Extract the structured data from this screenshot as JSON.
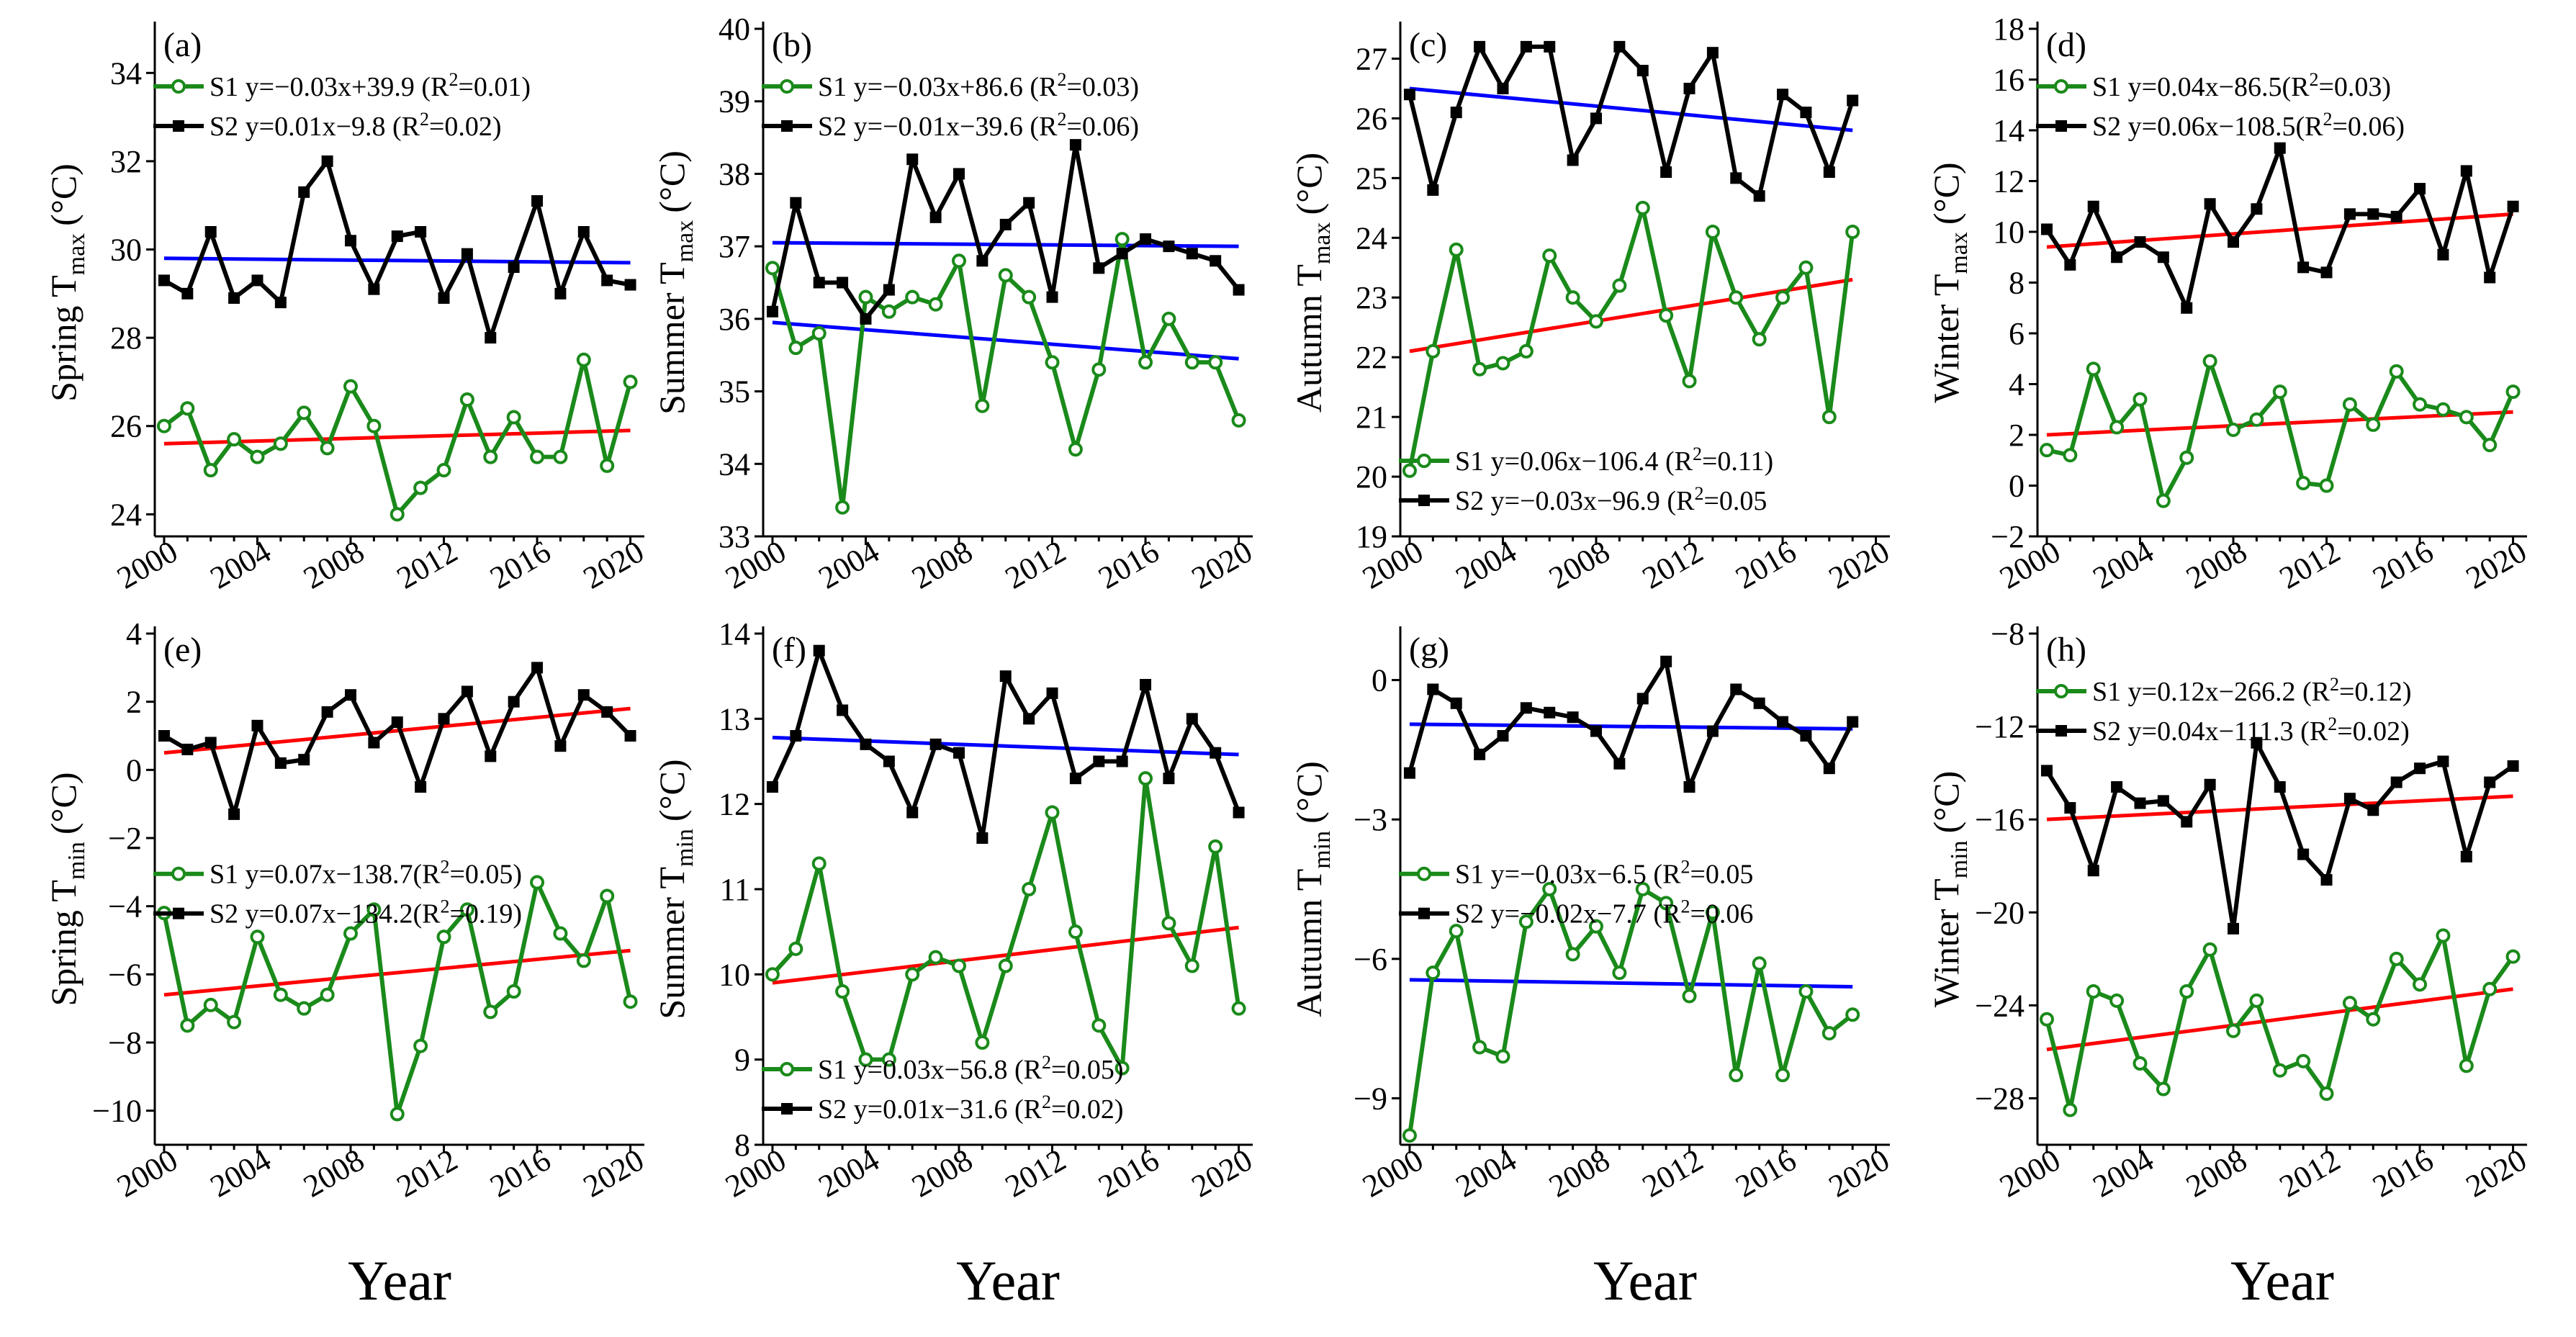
{
  "figure": {
    "xlabel": "Year",
    "colors": {
      "s1": "#1a8a1a",
      "s2": "#000000",
      "fit_red": "#ff0000",
      "fit_blue": "#0000ff"
    },
    "xticks": [
      2000,
      2004,
      2008,
      2012,
      2016,
      2020
    ]
  },
  "chart_data": [
    {
      "type": "line",
      "panel": "(a)",
      "ylabel_main": "Spring T",
      "ylabel_sub": "max",
      "ylabel_unit": "(°C)",
      "ylim": [
        23.5,
        35
      ],
      "yticks": [
        24,
        26,
        28,
        30,
        32,
        34
      ],
      "x": [
        2000,
        2001,
        2002,
        2003,
        2004,
        2005,
        2006,
        2007,
        2008,
        2009,
        2010,
        2011,
        2012,
        2013,
        2014,
        2015,
        2016,
        2017,
        2018,
        2019,
        2020
      ],
      "series": [
        {
          "name": "S1",
          "values": [
            26.0,
            26.4,
            25.0,
            25.7,
            25.3,
            25.6,
            26.3,
            25.5,
            26.9,
            26.0,
            24.0,
            24.6,
            25.0,
            26.6,
            25.3,
            26.2,
            25.3,
            25.3,
            27.5,
            25.1,
            27.0
          ]
        },
        {
          "name": "S2",
          "values": [
            29.3,
            29.0,
            30.4,
            28.9,
            29.3,
            28.8,
            31.3,
            32.0,
            30.2,
            29.1,
            30.3,
            30.4,
            28.9,
            29.9,
            28.0,
            29.6,
            31.1,
            29.0,
            30.4,
            29.3,
            29.2
          ]
        }
      ],
      "fits": [
        {
          "series": "S1",
          "color": "red",
          "start": 25.6,
          "end": 25.9
        },
        {
          "series": "S2",
          "color": "blue",
          "start": 29.8,
          "end": 29.7
        }
      ],
      "legend": {
        "position": "top",
        "entries": [
          {
            "series": "S1",
            "text": "S1 y=−0.03x+39.9 (R",
            "r2": "=0.01)"
          },
          {
            "series": "S2",
            "text": "S2 y=0.01x−9.8 (R",
            "r2": "=0.02)"
          }
        ]
      }
    },
    {
      "type": "line",
      "panel": "(b)",
      "ylabel_main": "Summer T",
      "ylabel_sub": "max",
      "ylabel_unit": "(°C)",
      "ylim": [
        33,
        40
      ],
      "yticks": [
        33,
        34,
        35,
        36,
        37,
        38,
        39,
        40
      ],
      "x": [
        2000,
        2001,
        2002,
        2003,
        2004,
        2005,
        2006,
        2007,
        2008,
        2009,
        2010,
        2011,
        2012,
        2013,
        2014,
        2015,
        2016,
        2017,
        2018,
        2019,
        2020
      ],
      "series": [
        {
          "name": "S1",
          "values": [
            36.7,
            35.6,
            35.8,
            33.4,
            36.3,
            36.1,
            36.3,
            36.2,
            36.8,
            34.8,
            36.6,
            36.3,
            35.4,
            34.2,
            35.3,
            37.1,
            35.4,
            36.0,
            35.4,
            35.4,
            34.6
          ]
        },
        {
          "name": "S2",
          "values": [
            36.1,
            37.6,
            36.5,
            36.5,
            36.0,
            36.4,
            38.2,
            37.4,
            38.0,
            36.8,
            37.3,
            37.6,
            36.3,
            38.4,
            36.7,
            36.9,
            37.1,
            37.0,
            36.9,
            36.8,
            36.4
          ]
        }
      ],
      "fits": [
        {
          "series": "S1",
          "color": "blue",
          "start": 35.95,
          "end": 35.45
        },
        {
          "series": "S2",
          "color": "blue",
          "start": 37.05,
          "end": 37.0
        }
      ],
      "legend": {
        "position": "top",
        "entries": [
          {
            "series": "S1",
            "text": "S1 y=−0.03x+86.6 (R",
            "r2": "=0.03)"
          },
          {
            "series": "S2",
            "text": "S2 y=−0.01x−39.6 (R",
            "r2": "=0.06)"
          }
        ]
      }
    },
    {
      "type": "line",
      "panel": "(c)",
      "ylabel_main": "Autumn T",
      "ylabel_sub": "max",
      "ylabel_unit": "(°C)",
      "ylim": [
        19,
        27.5
      ],
      "yticks": [
        19,
        20,
        21,
        22,
        23,
        24,
        25,
        26,
        27
      ],
      "x": [
        2000,
        2001,
        2002,
        2003,
        2004,
        2005,
        2006,
        2007,
        2008,
        2009,
        2010,
        2011,
        2012,
        2013,
        2014,
        2015,
        2016,
        2017,
        2018,
        2019
      ],
      "series": [
        {
          "name": "S1",
          "values": [
            20.1,
            22.1,
            23.8,
            21.8,
            21.9,
            22.1,
            23.7,
            23.0,
            22.6,
            23.2,
            24.5,
            22.7,
            21.6,
            24.1,
            23.0,
            22.3,
            23.0,
            23.5,
            21.0,
            24.1
          ]
        },
        {
          "name": "S2",
          "values": [
            26.4,
            24.8,
            26.1,
            27.2,
            26.5,
            27.2,
            27.2,
            25.3,
            26.0,
            27.2,
            26.8,
            25.1,
            26.5,
            27.1,
            25.0,
            24.7,
            26.4,
            26.1,
            25.1,
            26.3
          ]
        }
      ],
      "fits": [
        {
          "series": "S1",
          "color": "red",
          "start": 22.1,
          "end": 23.3
        },
        {
          "series": "S2",
          "color": "blue",
          "start": 26.5,
          "end": 25.8
        }
      ],
      "legend": {
        "position": "bottom",
        "entries": [
          {
            "series": "S1",
            "text": "S1 y=0.06x−106.4 (R",
            "r2": "=0.11)"
          },
          {
            "series": "S2",
            "text": "S2 y=−0.03x−96.9 (R",
            "r2": "=0.05"
          }
        ]
      }
    },
    {
      "type": "line",
      "panel": "(d)",
      "ylabel_main": "Winter T",
      "ylabel_sub": "max",
      "ylabel_unit": "(°C)",
      "ylim": [
        -2,
        18
      ],
      "yticks": [
        -2,
        0,
        2,
        4,
        6,
        8,
        10,
        12,
        14,
        16,
        18
      ],
      "x": [
        2000,
        2001,
        2002,
        2003,
        2004,
        2005,
        2006,
        2007,
        2008,
        2009,
        2010,
        2011,
        2012,
        2013,
        2014,
        2015,
        2016,
        2017,
        2018,
        2019,
        2020
      ],
      "series": [
        {
          "name": "S1",
          "values": [
            1.4,
            1.2,
            4.6,
            2.3,
            3.4,
            -0.6,
            1.1,
            4.9,
            2.2,
            2.6,
            3.7,
            0.1,
            0.0,
            3.2,
            2.4,
            4.5,
            3.2,
            3.0,
            2.7,
            1.6,
            3.7
          ]
        },
        {
          "name": "S2",
          "values": [
            10.1,
            8.7,
            11.0,
            9.0,
            9.6,
            9.0,
            7.0,
            11.1,
            9.6,
            10.9,
            13.3,
            8.6,
            8.4,
            10.7,
            10.7,
            10.6,
            11.7,
            9.1,
            12.4,
            8.2,
            11.0
          ]
        }
      ],
      "fits": [
        {
          "series": "S1",
          "color": "red",
          "start": 2.0,
          "end": 2.9
        },
        {
          "series": "S2",
          "color": "red",
          "start": 9.4,
          "end": 10.7
        }
      ],
      "legend": {
        "position": "top",
        "entries": [
          {
            "series": "S1",
            "text": "S1 y=0.04x−86.5(R",
            "r2": "=0.03)"
          },
          {
            "series": "S2",
            "text": "S2 y=0.06x−108.5(R",
            "r2": "=0.06)"
          }
        ]
      }
    },
    {
      "type": "line",
      "panel": "(e)",
      "ylabel_main": "Spring T",
      "ylabel_sub": "min",
      "ylabel_unit": "(°C)",
      "ylim": [
        -11,
        4
      ],
      "yticks": [
        -10,
        -8,
        -6,
        -4,
        -2,
        0,
        2,
        4
      ],
      "x": [
        2000,
        2001,
        2002,
        2003,
        2004,
        2005,
        2006,
        2007,
        2008,
        2009,
        2010,
        2011,
        2012,
        2013,
        2014,
        2015,
        2016,
        2017,
        2018,
        2019,
        2020
      ],
      "series": [
        {
          "name": "S1",
          "values": [
            -4.2,
            -7.5,
            -6.9,
            -7.4,
            -4.9,
            -6.6,
            -7.0,
            -6.6,
            -4.8,
            -4.1,
            -10.1,
            -8.1,
            -4.9,
            -4.1,
            -7.1,
            -6.5,
            -3.3,
            -4.8,
            -5.6,
            -3.7,
            -6.8
          ]
        },
        {
          "name": "S2",
          "values": [
            1.0,
            0.6,
            0.8,
            -1.3,
            1.3,
            0.2,
            0.3,
            1.7,
            2.2,
            0.8,
            1.4,
            -0.5,
            1.5,
            2.3,
            0.4,
            2.0,
            3.0,
            0.7,
            2.2,
            1.7,
            1.0
          ]
        }
      ],
      "fits": [
        {
          "series": "S1",
          "color": "red",
          "start": -6.6,
          "end": -5.3
        },
        {
          "series": "S2",
          "color": "red",
          "start": 0.5,
          "end": 1.8
        }
      ],
      "legend": {
        "position": "middle",
        "entries": [
          {
            "series": "S1",
            "text": "S1 y=0.07x−138.7(R",
            "r2": "=0.05)"
          },
          {
            "series": "S2",
            "text": "S2 y=0.07x−134.2(R",
            "r2": "=0.19)"
          }
        ]
      }
    },
    {
      "type": "line",
      "panel": "(f)",
      "ylabel_main": "Summer T",
      "ylabel_sub": "min",
      "ylabel_unit": "(°C)",
      "ylim": [
        8,
        14
      ],
      "yticks": [
        8,
        9,
        10,
        11,
        12,
        13,
        14
      ],
      "x": [
        2000,
        2001,
        2002,
        2003,
        2004,
        2005,
        2006,
        2007,
        2008,
        2009,
        2010,
        2011,
        2012,
        2013,
        2014,
        2015,
        2016,
        2017,
        2018,
        2019,
        2020
      ],
      "series": [
        {
          "name": "S1",
          "values": [
            10.0,
            10.3,
            11.3,
            9.8,
            9.0,
            9.0,
            10.0,
            10.2,
            10.1,
            9.2,
            10.1,
            11.0,
            11.9,
            10.5,
            9.4,
            8.9,
            12.3,
            10.6,
            10.1,
            11.5,
            9.6
          ]
        },
        {
          "name": "S2",
          "values": [
            12.2,
            12.8,
            13.8,
            13.1,
            12.7,
            12.5,
            11.9,
            12.7,
            12.6,
            11.6,
            13.5,
            13.0,
            13.3,
            12.3,
            12.5,
            12.5,
            13.4,
            12.3,
            13.0,
            12.6,
            11.9
          ]
        }
      ],
      "fits": [
        {
          "series": "S1",
          "color": "red",
          "start": 9.9,
          "end": 10.55
        },
        {
          "series": "S2",
          "color": "blue",
          "start": 12.78,
          "end": 12.58
        }
      ],
      "legend": {
        "position": "bottom",
        "entries": [
          {
            "series": "S1",
            "text": "S1  y=0.03x−56.8 (R",
            "r2": "=0.05)"
          },
          {
            "series": "S2",
            "text": "S2  y=0.01x−31.6 (R",
            "r2": "=0.02)"
          }
        ]
      }
    },
    {
      "type": "line",
      "panel": "(g)",
      "ylabel_main": "Autumn T",
      "ylabel_sub": "min",
      "ylabel_unit": "(°C)",
      "ylim": [
        -10,
        1
      ],
      "yticks": [
        -9,
        -6,
        -3,
        0
      ],
      "x": [
        2000,
        2001,
        2002,
        2003,
        2004,
        2005,
        2006,
        2007,
        2008,
        2009,
        2010,
        2011,
        2012,
        2013,
        2014,
        2015,
        2016,
        2017,
        2018,
        2019
      ],
      "series": [
        {
          "name": "S1",
          "values": [
            -9.8,
            -6.3,
            -5.4,
            -7.9,
            -8.1,
            -5.2,
            -4.5,
            -5.9,
            -5.3,
            -6.3,
            -4.5,
            -4.8,
            -6.8,
            -5.0,
            -8.5,
            -6.1,
            -8.5,
            -6.7,
            -7.6,
            -7.2
          ]
        },
        {
          "name": "S2",
          "values": [
            -2.0,
            -0.2,
            -0.5,
            -1.6,
            -1.2,
            -0.6,
            -0.7,
            -0.8,
            -1.1,
            -1.8,
            -0.4,
            0.4,
            -2.3,
            -1.1,
            -0.2,
            -0.5,
            -0.9,
            -1.2,
            -1.9,
            -0.9
          ]
        }
      ],
      "fits": [
        {
          "series": "S1",
          "color": "blue",
          "start": -6.45,
          "end": -6.6
        },
        {
          "series": "S2",
          "color": "blue",
          "start": -0.95,
          "end": -1.05
        }
      ],
      "legend": {
        "position": "middle",
        "entries": [
          {
            "series": "S1",
            "text": "S1 y=−0.03x−6.5 (R",
            "r2": "=0.05"
          },
          {
            "series": "S2",
            "text": "S2 y=−0.02x−7.7 (R",
            "r2": "=0.06"
          }
        ]
      }
    },
    {
      "type": "line",
      "panel": "(h)",
      "ylabel_main": "Winter T",
      "ylabel_sub": "min",
      "ylabel_unit": "(°C)",
      "ylim": [
        -30,
        -8
      ],
      "yticks": [
        -28,
        -24,
        -20,
        -16,
        -12,
        -8
      ],
      "x": [
        2000,
        2001,
        2002,
        2003,
        2004,
        2005,
        2006,
        2007,
        2008,
        2009,
        2010,
        2011,
        2012,
        2013,
        2014,
        2015,
        2016,
        2017,
        2018,
        2019,
        2020
      ],
      "series": [
        {
          "name": "S1",
          "values": [
            -24.6,
            -28.5,
            -23.4,
            -23.8,
            -26.5,
            -27.6,
            -23.4,
            -21.6,
            -25.1,
            -23.8,
            -26.8,
            -26.4,
            -27.8,
            -23.9,
            -24.6,
            -22.0,
            -23.1,
            -21.0,
            -26.6,
            -23.3,
            -21.9
          ]
        },
        {
          "name": "S2",
          "values": [
            -13.9,
            -15.5,
            -18.2,
            -14.6,
            -15.3,
            -15.2,
            -16.1,
            -14.5,
            -20.7,
            -12.7,
            -14.6,
            -17.5,
            -18.6,
            -15.1,
            -15.6,
            -14.4,
            -13.8,
            -13.5,
            -17.6,
            -14.4,
            -13.7
          ]
        }
      ],
      "fits": [
        {
          "series": "S1",
          "color": "red",
          "start": -25.9,
          "end": -23.3
        },
        {
          "series": "S2",
          "color": "red",
          "start": -16.0,
          "end": -15.0
        }
      ],
      "legend": {
        "position": "top",
        "entries": [
          {
            "series": "S1",
            "text": "S1 y=0.12x−266.2 (R",
            "r2": "=0.12)"
          },
          {
            "series": "S2",
            "text": "S2 y=0.04x−111.3 (R",
            "r2": "=0.02)"
          }
        ]
      }
    }
  ]
}
